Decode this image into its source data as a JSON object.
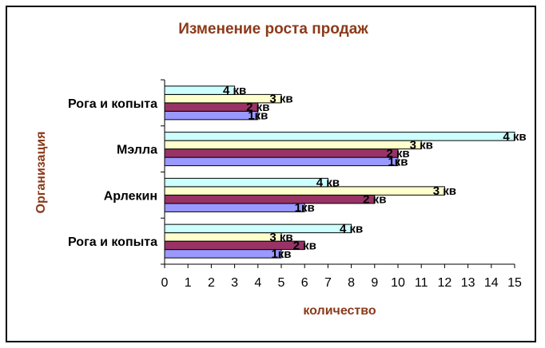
{
  "chart_data": {
    "type": "bar",
    "orientation": "horizontal",
    "title": "Изменение роста продаж",
    "xlabel": "количество",
    "ylabel": "Организация",
    "xlim": [
      0,
      15
    ],
    "x_ticks": [
      "0",
      "1",
      "2",
      "3",
      "4",
      "5",
      "6",
      "7",
      "8",
      "9",
      "10",
      "11",
      "12",
      "13",
      "14",
      "15"
    ],
    "categories": [
      "Рога и копыта",
      "Арлекин",
      "Мэлла",
      "Рога и копыта"
    ],
    "series": [
      {
        "name": "1кв",
        "label": "1кв",
        "color": "#9999ff",
        "values": [
          5,
          6,
          10,
          4
        ]
      },
      {
        "name": "2 кв",
        "label": "2 кв",
        "color": "#993366",
        "values": [
          6,
          9,
          10,
          4
        ]
      },
      {
        "name": "3 кв",
        "label": "3 кв",
        "color": "#ffffcc",
        "values": [
          5,
          12,
          11,
          5
        ]
      },
      {
        "name": "4 кв",
        "label": "4 кв",
        "color": "#ccffff",
        "values": [
          8,
          7,
          15,
          3
        ]
      }
    ],
    "grid": false,
    "legend": "none"
  }
}
